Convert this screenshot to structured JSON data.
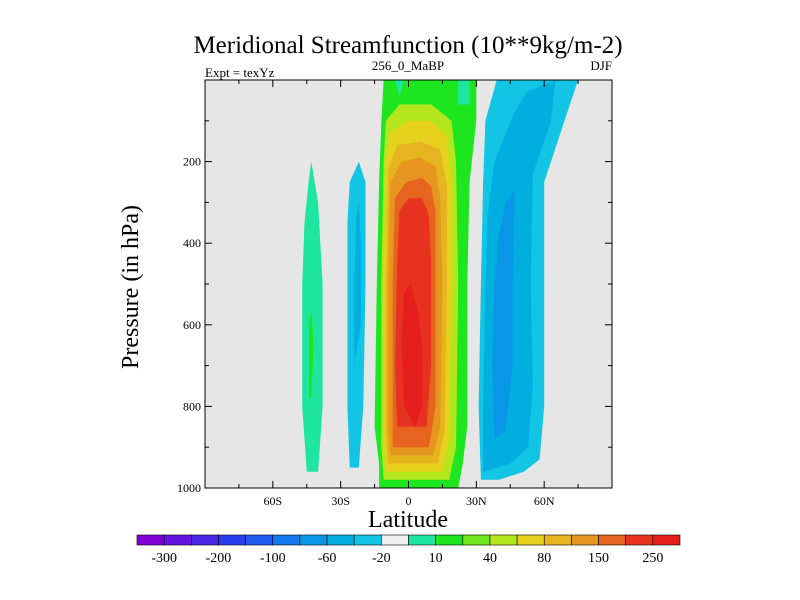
{
  "chart_data": {
    "type": "heatmap",
    "title": "Meridional Streamfunction (10**9kg/m-2)",
    "left_note": "Expt = texYz",
    "center_note": "256_0_MaBP",
    "right_note": "DJF",
    "xlabel": "Latitude",
    "ylabel": "Pressure (in hPa)",
    "xlim": [
      -90,
      90
    ],
    "ylim": [
      1000,
      0
    ],
    "x_ticks": [
      {
        "value": -60,
        "label": "60S"
      },
      {
        "value": -30,
        "label": "30S"
      },
      {
        "value": 0,
        "label": "0"
      },
      {
        "value": 30,
        "label": "30N"
      },
      {
        "value": 60,
        "label": "60N"
      }
    ],
    "y_ticks": [
      {
        "value": 200,
        "label": "200"
      },
      {
        "value": 400,
        "label": "400"
      },
      {
        "value": 600,
        "label": "600"
      },
      {
        "value": 800,
        "label": "800"
      },
      {
        "value": 1000,
        "label": "1000"
      }
    ],
    "y_minor_ticks": [
      100,
      300,
      500,
      700,
      900
    ],
    "x_minor_ticks": [
      -75,
      -45,
      -15,
      15,
      45,
      75
    ],
    "background_color": "#e6e6e6",
    "colorbar": {
      "colors": [
        "#7f00d4",
        "#6414e0",
        "#4b28e8",
        "#283ceb",
        "#1e5af0",
        "#1478ee",
        "#0a96e6",
        "#00afe0",
        "#12c5e5",
        "#f0f0f0",
        "#1ee6a0",
        "#1ee61e",
        "#6ee61e",
        "#b4e61e",
        "#e6d21e",
        "#e6b41e",
        "#e6961e",
        "#e6641e",
        "#e6321e",
        "#e61e1e"
      ],
      "labels": [
        "-300",
        "-200",
        "-100",
        "-60",
        "-20",
        "10",
        "40",
        "80",
        "150",
        "250"
      ]
    },
    "contour_regions": [
      {
        "level": "40",
        "color": "#1ee61e",
        "lat_lat_pres": [
          [
            -13,
            1000
          ],
          [
            -13,
            940
          ],
          [
            -15,
            850
          ],
          [
            -14,
            500
          ],
          [
            -13,
            250
          ],
          [
            -12,
            100
          ],
          [
            -11,
            0
          ],
          [
            30,
            0
          ],
          [
            30,
            100
          ],
          [
            27,
            250
          ],
          [
            26,
            500
          ],
          [
            26,
            850
          ],
          [
            24,
            940
          ],
          [
            22,
            1000
          ]
        ]
      },
      {
        "level": "10",
        "color": "#1ee6a0",
        "lat_lat_pres": [
          [
            -6,
            0
          ],
          [
            -4,
            40
          ],
          [
            -2,
            0
          ]
        ]
      },
      {
        "level": "10",
        "color": "#1ee6a0",
        "lat_lat_pres": [
          [
            22,
            0
          ],
          [
            22,
            60
          ],
          [
            27,
            60
          ],
          [
            27,
            0
          ]
        ]
      },
      {
        "level": "80",
        "color": "#b4e61e",
        "lat_lat_pres": [
          [
            -11,
            980
          ],
          [
            -12,
            900
          ],
          [
            -12,
            500
          ],
          [
            -11,
            200
          ],
          [
            -10,
            100
          ],
          [
            -4,
            60
          ],
          [
            10,
            60
          ],
          [
            19,
            100
          ],
          [
            21,
            200
          ],
          [
            22,
            500
          ],
          [
            21,
            900
          ],
          [
            18,
            980
          ]
        ]
      },
      {
        "level": "100",
        "color": "#e6d21e",
        "lat_lat_pres": [
          [
            -10,
            960
          ],
          [
            -11,
            870
          ],
          [
            -11,
            500
          ],
          [
            -10,
            200
          ],
          [
            -8,
            130
          ],
          [
            0,
            100
          ],
          [
            10,
            100
          ],
          [
            17,
            140
          ],
          [
            19,
            250
          ],
          [
            19,
            500
          ],
          [
            18,
            880
          ],
          [
            15,
            960
          ]
        ]
      },
      {
        "level": "150",
        "color": "#e6b41e",
        "lat_lat_pres": [
          [
            -9,
            940
          ],
          [
            -10,
            860
          ],
          [
            -10,
            500
          ],
          [
            -9,
            220
          ],
          [
            -5,
            160
          ],
          [
            5,
            150
          ],
          [
            14,
            170
          ],
          [
            17,
            260
          ],
          [
            17,
            500
          ],
          [
            16,
            860
          ],
          [
            13,
            940
          ]
        ]
      },
      {
        "level": "200",
        "color": "#e6961e",
        "lat_lat_pres": [
          [
            -8,
            920
          ],
          [
            -9,
            850
          ],
          [
            -9,
            500
          ],
          [
            -8,
            250
          ],
          [
            -3,
            200
          ],
          [
            5,
            190
          ],
          [
            12,
            210
          ],
          [
            14,
            290
          ],
          [
            15,
            500
          ],
          [
            14,
            850
          ],
          [
            11,
            920
          ]
        ]
      },
      {
        "level": "250",
        "color": "#e6641e",
        "lat_lat_pres": [
          [
            -7,
            900
          ],
          [
            -7,
            800
          ],
          [
            -7,
            500
          ],
          [
            -6,
            290
          ],
          [
            -1,
            250
          ],
          [
            6,
            240
          ],
          [
            10,
            260
          ],
          [
            12,
            320
          ],
          [
            12,
            500
          ],
          [
            12,
            800
          ],
          [
            9,
            900
          ]
        ]
      },
      {
        "level": "300",
        "color": "#e6321e",
        "lat_lat_pres": [
          [
            -5,
            850
          ],
          [
            -6,
            700
          ],
          [
            -5,
            450
          ],
          [
            -4,
            320
          ],
          [
            0,
            290
          ],
          [
            6,
            290
          ],
          [
            9,
            330
          ],
          [
            10,
            450
          ],
          [
            10,
            700
          ],
          [
            8,
            850
          ]
        ]
      },
      {
        "level": "350",
        "color": "#e61e1e",
        "lat_lat_pres": [
          [
            -2,
            800
          ],
          [
            -3,
            650
          ],
          [
            -2,
            520
          ],
          [
            1,
            500
          ],
          [
            4,
            560
          ],
          [
            6,
            650
          ],
          [
            6,
            800
          ],
          [
            3,
            850
          ]
        ]
      },
      {
        "level": "-10",
        "color": "#12c5e5",
        "lat_lat_pres": [
          [
            32,
            980
          ],
          [
            31,
            800
          ],
          [
            32,
            500
          ],
          [
            33,
            250
          ],
          [
            34,
            100
          ],
          [
            39,
            0
          ],
          [
            75,
            0
          ],
          [
            69,
            100
          ],
          [
            60,
            250
          ],
          [
            60,
            500
          ],
          [
            60,
            800
          ],
          [
            58,
            930
          ],
          [
            51,
            960
          ],
          [
            40,
            980
          ]
        ]
      },
      {
        "level": "-20",
        "color": "#00afe0",
        "lat_lat_pres": [
          [
            33,
            960
          ],
          [
            33,
            800
          ],
          [
            34,
            500
          ],
          [
            35,
            330
          ],
          [
            38,
            200
          ],
          [
            46,
            90
          ],
          [
            52,
            30
          ],
          [
            65,
            0
          ],
          [
            63,
            100
          ],
          [
            55,
            230
          ],
          [
            54,
            500
          ],
          [
            55,
            750
          ],
          [
            53,
            900
          ],
          [
            45,
            940
          ]
        ]
      },
      {
        "level": "-60",
        "color": "#0a96e6",
        "lat_lat_pres": [
          [
            38,
            880
          ],
          [
            37,
            700
          ],
          [
            38,
            500
          ],
          [
            40,
            380
          ],
          [
            43,
            300
          ],
          [
            47,
            270
          ],
          [
            46,
            500
          ],
          [
            46,
            700
          ],
          [
            43,
            860
          ]
        ]
      },
      {
        "level": "-10",
        "color": "#12c5e5",
        "lat_lat_pres": [
          [
            -26,
            950
          ],
          [
            -27,
            800
          ],
          [
            -27,
            500
          ],
          [
            -27,
            350
          ],
          [
            -26,
            250
          ],
          [
            -22,
            200
          ],
          [
            -19,
            250
          ],
          [
            -19,
            500
          ],
          [
            -20,
            800
          ],
          [
            -22,
            950
          ]
        ]
      },
      {
        "level": "-20",
        "color": "#00afe0",
        "lat_lat_pres": [
          [
            -24,
            700
          ],
          [
            -24,
            500
          ],
          [
            -23,
            330
          ],
          [
            -22,
            300
          ],
          [
            -21,
            400
          ],
          [
            -21,
            600
          ]
        ]
      },
      {
        "level": "10",
        "color": "#1ee6a0",
        "lat_lat_pres": [
          [
            -45,
            960
          ],
          [
            -47,
            800
          ],
          [
            -47,
            500
          ],
          [
            -46,
            350
          ],
          [
            -44,
            240
          ],
          [
            -43,
            200
          ],
          [
            -40,
            300
          ],
          [
            -38,
            500
          ],
          [
            -38,
            800
          ],
          [
            -40,
            960
          ]
        ]
      },
      {
        "level": "40",
        "color": "#1ee61e",
        "lat_lat_pres": [
          [
            -44,
            780
          ],
          [
            -44,
            700
          ],
          [
            -44,
            600
          ],
          [
            -43,
            560
          ],
          [
            -42,
            650
          ],
          [
            -43,
            780
          ]
        ]
      }
    ]
  }
}
